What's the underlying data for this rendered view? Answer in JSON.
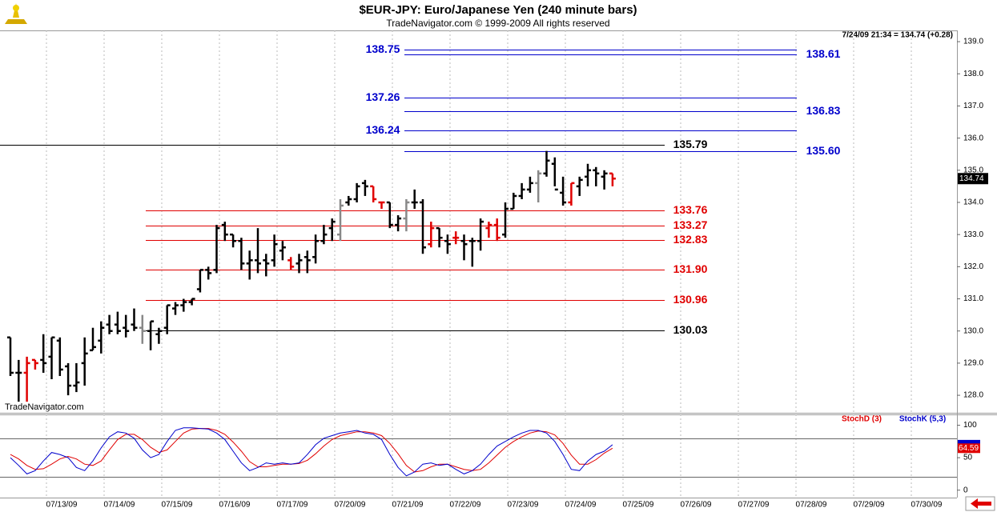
{
  "chart_data": {
    "type": "ohlc",
    "title": "$EUR-JPY:  Euro/Japanese Yen  (240 minute bars)",
    "subtitle": "TradeNavigator.com © 1999-2009 All rights reserved",
    "last_quote": "7/24/09 21:34 = 134.74 (+0.28)",
    "last_price": 134.74,
    "watermark": "TradeNavigator.com",
    "dates": [
      "07/13/09",
      "07/14/09",
      "07/15/09",
      "07/16/09",
      "07/17/09",
      "07/20/09",
      "07/21/09",
      "07/22/09",
      "07/23/09",
      "07/24/09",
      "07/25/09",
      "07/26/09",
      "07/27/09",
      "07/28/09",
      "07/29/09",
      "07/30/09"
    ],
    "ylim": [
      127.48,
      139.35
    ],
    "yticks": [
      {
        "value": 128,
        "label": "128.0"
      },
      {
        "value": 129,
        "label": "129.0"
      },
      {
        "value": 130,
        "label": "130.0"
      },
      {
        "value": 131,
        "label": "131.0"
      },
      {
        "value": 132,
        "label": "132.0"
      },
      {
        "value": 133,
        "label": "133.0"
      },
      {
        "value": 134,
        "label": "134.0"
      },
      {
        "value": 135,
        "label": "135.0"
      },
      {
        "value": 136,
        "label": "136.0"
      },
      {
        "value": 137,
        "label": "137.0"
      },
      {
        "value": 138,
        "label": "138.0"
      },
      {
        "value": 139,
        "label": "139.0"
      }
    ],
    "open": [
      129.8,
      128.7,
      128.7,
      129.1,
      129.1,
      129.2,
      129.7,
      128.9,
      128.3,
      129.0,
      129.4,
      129.7,
      130.2,
      130.2,
      130.1,
      130.2,
      130.1,
      130.0,
      129.9,
      130.1,
      130.7,
      130.8,
      130.9,
      131.3,
      131.9,
      131.9,
      133.3,
      133.0,
      132.8,
      132.1,
      132.2,
      132.2,
      132.2,
      132.5,
      132.2,
      132.1,
      132.3,
      132.3,
      132.8,
      133.2,
      133.0,
      134.0,
      134.1,
      134.6,
      134.5,
      134.0,
      134.0,
      133.3,
      133.5,
      134.0,
      134.0,
      132.7,
      133.2,
      132.8,
      132.9,
      132.8,
      132.8,
      132.8,
      133.2,
      133.3,
      133.0,
      133.8,
      134.2,
      134.4,
      134.6,
      134.9,
      135.2,
      134.3,
      134.0,
      134.5,
      134.8,
      135.0,
      134.8,
      134.9
    ],
    "high": [
      129.8,
      129.1,
      129.2,
      129.1,
      129.9,
      129.8,
      129.8,
      129.0,
      129.0,
      129.8,
      130.1,
      130.3,
      130.5,
      130.6,
      130.5,
      130.7,
      130.5,
      130.3,
      130.1,
      130.8,
      130.9,
      131.0,
      131.0,
      131.9,
      132.0,
      133.3,
      133.4,
      133.0,
      132.9,
      132.5,
      133.2,
      132.4,
      133.0,
      132.8,
      132.3,
      132.4,
      132.5,
      133.0,
      133.3,
      133.5,
      134.1,
      134.2,
      134.6,
      134.7,
      134.5,
      134.0,
      134.0,
      133.6,
      134.1,
      134.4,
      134.1,
      133.4,
      133.2,
      133.0,
      133.1,
      133.0,
      132.9,
      133.5,
      133.4,
      133.5,
      134.0,
      134.3,
      134.6,
      134.8,
      135.0,
      135.6,
      135.4,
      134.8,
      134.6,
      134.8,
      135.2,
      135.1,
      135.0,
      134.9
    ],
    "low": [
      128.6,
      127.8,
      127.8,
      128.8,
      128.7,
      128.5,
      128.6,
      128.0,
      128.1,
      128.3,
      129.4,
      129.3,
      129.9,
      129.9,
      129.8,
      130.0,
      129.6,
      129.4,
      129.6,
      129.9,
      130.5,
      130.6,
      130.8,
      131.2,
      131.6,
      131.8,
      132.8,
      132.6,
      131.9,
      131.6,
      131.8,
      131.7,
      132.0,
      132.2,
      131.9,
      131.8,
      131.8,
      132.1,
      132.7,
      132.8,
      132.8,
      133.9,
      134.0,
      134.2,
      134.0,
      133.8,
      133.2,
      133.1,
      133.1,
      133.8,
      132.4,
      132.6,
      132.6,
      132.4,
      132.7,
      132.2,
      132.0,
      132.5,
      132.9,
      132.8,
      132.9,
      133.8,
      134.1,
      134.3,
      134.0,
      134.8,
      134.5,
      133.9,
      133.9,
      134.2,
      134.5,
      134.5,
      134.4,
      134.5
    ],
    "close": [
      128.7,
      128.7,
      129.0,
      129.0,
      129.0,
      129.8,
      128.8,
      128.3,
      128.4,
      129.3,
      129.5,
      130.1,
      130.0,
      130.0,
      130.0,
      130.1,
      130.0,
      130.3,
      130.0,
      130.8,
      130.8,
      130.9,
      131.0,
      131.9,
      131.8,
      133.2,
      133.0,
      132.8,
      132.1,
      132.2,
      132.1,
      132.1,
      132.7,
      132.6,
      132.0,
      132.2,
      132.2,
      132.8,
      133.0,
      133.4,
      133.9,
      134.1,
      134.5,
      134.5,
      134.1,
      134.0,
      133.3,
      133.5,
      134.0,
      134.0,
      132.6,
      133.2,
      132.9,
      132.7,
      132.9,
      132.7,
      132.8,
      133.4,
      133.3,
      132.9,
      133.8,
      134.2,
      134.4,
      134.6,
      134.9,
      135.3,
      134.4,
      134.0,
      134.6,
      134.7,
      135.0,
      134.9,
      134.9,
      134.74
    ],
    "bar_colors": [
      "#000",
      "#000",
      "#e00000",
      "#e00000",
      "#000",
      "#000",
      "#000",
      "#000",
      "#000",
      "#000",
      "#000",
      "#000",
      "#000",
      "#000",
      "#000",
      "#000",
      "#888",
      "#000",
      "#000",
      "#000",
      "#000",
      "#000",
      "#000",
      "#000",
      "#000",
      "#000",
      "#000",
      "#000",
      "#000",
      "#000",
      "#000",
      "#000",
      "#000",
      "#000",
      "#e00000",
      "#000",
      "#000",
      "#000",
      "#000",
      "#000",
      "#888",
      "#000",
      "#000",
      "#000",
      "#e00000",
      "#e00000",
      "#000",
      "#000",
      "#888",
      "#000",
      "#000",
      "#e00000",
      "#000",
      "#000",
      "#e00000",
      "#000",
      "#000",
      "#000",
      "#e00000",
      "#e00000",
      "#000",
      "#000",
      "#000",
      "#000",
      "#888",
      "#000",
      "#000",
      "#000",
      "#e00000",
      "#000",
      "#000",
      "#000",
      "#000",
      "#e00000"
    ],
    "levels": [
      {
        "value": 138.75,
        "color": "#0000cc"
      },
      {
        "value": 138.61,
        "color": "#0000cc"
      },
      {
        "value": 137.26,
        "color": "#0000cc"
      },
      {
        "value": 136.83,
        "color": "#0000cc"
      },
      {
        "value": 136.24,
        "color": "#0000cc"
      },
      {
        "value": 135.6,
        "label": "135.60",
        "color": "#0000cc"
      },
      {
        "value": 135.79,
        "color": "#000000"
      },
      {
        "value": 133.76,
        "color": "#e00000"
      },
      {
        "value": 133.27,
        "color": "#e00000"
      },
      {
        "value": 132.83,
        "color": "#e00000"
      },
      {
        "value": 131.9,
        "label": "131.90",
        "color": "#e00000"
      },
      {
        "value": 130.96,
        "color": "#e00000"
      },
      {
        "value": 130.03,
        "color": "#000000"
      }
    ],
    "stoch": {
      "ylim": [
        -11.5,
        116.7
      ],
      "yticks": [
        0,
        50,
        100
      ],
      "levels": [
        80,
        20
      ],
      "series": [
        {
          "name": "StochD (3)",
          "color": "#e00000",
          "values": [
            55,
            48,
            38,
            32,
            33,
            40,
            48,
            52,
            48,
            40,
            38,
            45,
            62,
            78,
            86,
            86,
            78,
            66,
            58,
            62,
            75,
            88,
            94,
            95,
            95,
            92,
            86,
            74,
            60,
            44,
            36,
            36,
            38,
            40,
            40,
            41,
            46,
            56,
            68,
            78,
            84,
            87,
            90,
            90,
            88,
            84,
            72,
            56,
            38,
            28,
            30,
            36,
            40,
            40,
            36,
            32,
            30,
            32,
            42,
            54,
            66,
            75,
            82,
            88,
            91,
            90,
            85,
            72,
            54,
            40,
            40,
            47,
            57,
            64.59
          ],
          "value_labels": [
            null,
            null,
            null,
            null,
            null,
            null,
            null,
            null,
            null,
            null,
            null,
            null,
            null,
            null,
            null,
            null,
            null,
            null,
            null,
            null,
            null,
            null,
            null,
            null,
            null,
            null,
            null,
            null,
            null,
            null,
            null,
            null,
            null,
            null,
            null,
            null,
            null,
            null,
            null,
            null,
            null,
            null,
            null,
            null,
            null,
            null,
            null,
            null,
            null,
            null,
            null,
            null,
            null,
            null,
            null,
            null,
            null,
            null,
            null,
            null,
            null,
            null,
            null,
            null,
            null,
            null,
            null,
            null,
            null,
            null,
            null,
            null,
            null,
            "64.59"
          ]
        },
        {
          "name": "StochK (5,3)",
          "color": "#0000cc",
          "values": [
            50,
            38,
            25,
            30,
            45,
            58,
            55,
            50,
            35,
            30,
            45,
            65,
            82,
            90,
            88,
            80,
            62,
            50,
            55,
            75,
            92,
            96,
            96,
            95,
            94,
            88,
            78,
            60,
            42,
            30,
            35,
            42,
            40,
            42,
            40,
            42,
            55,
            70,
            80,
            84,
            88,
            90,
            92,
            88,
            86,
            78,
            55,
            35,
            22,
            28,
            40,
            42,
            38,
            40,
            32,
            25,
            30,
            40,
            55,
            68,
            75,
            82,
            88,
            92,
            92,
            88,
            75,
            55,
            32,
            30,
            45,
            55,
            60,
            70
          ]
        }
      ]
    }
  }
}
